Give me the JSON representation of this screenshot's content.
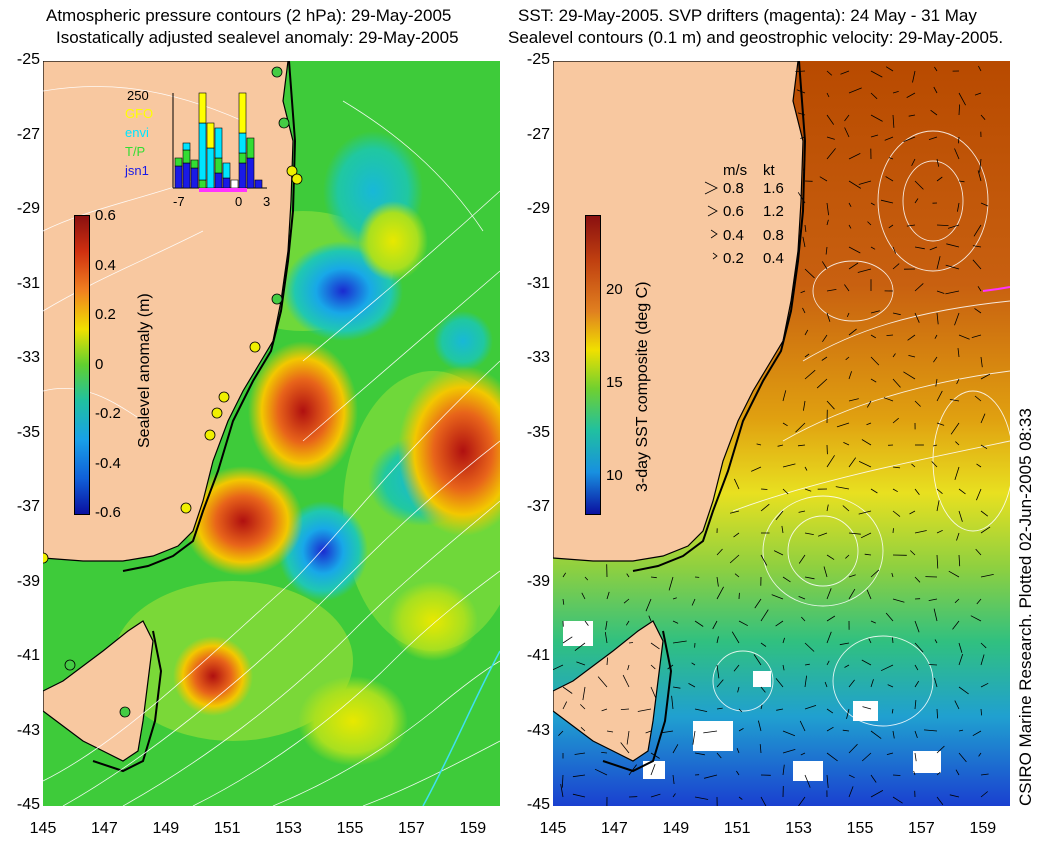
{
  "titles": {
    "left_line1": "Atmospheric pressure contours (2 hPa): 29-May-2005",
    "left_line2": "Isostatically adjusted sealevel anomaly: 29-May-2005",
    "right_line1": "SST: 29-May-2005. SVP drifters (magenta): 24 May - 31 May",
    "right_line2": "Sealevel contours (0.1 m) and geostrophic velocity: 29-May-2005."
  },
  "axes": {
    "lat_labels": [
      "-25",
      "-27",
      "-29",
      "-31",
      "-33",
      "-35",
      "-37",
      "-39",
      "-41",
      "-43",
      "-45"
    ],
    "lon_labels": [
      "145",
      "147",
      "149",
      "151",
      "153",
      "155",
      "157",
      "159"
    ]
  },
  "left_colorbar": {
    "label": "Sealevel anomaly (m)",
    "ticks": [
      "0.6",
      "0.4",
      "0.2",
      "0",
      "-0.2",
      "-0.4",
      "-0.6"
    ]
  },
  "right_colorbar": {
    "label": "3-day SST composite (deg C)",
    "ticks": [
      "20",
      "15",
      "10"
    ]
  },
  "inset": {
    "ymax": "250",
    "legend": [
      {
        "label": "GFO",
        "color": "#ffff00"
      },
      {
        "label": "envi",
        "color": "#00e5ff"
      },
      {
        "label": "T/P",
        "color": "#33dd33"
      },
      {
        "label": "jsn1",
        "color": "#1a1ae6"
      }
    ],
    "x_labels": [
      "-7",
      "0",
      "3"
    ]
  },
  "velocity_legend": {
    "header_ms": "m/s",
    "header_kt": "kt",
    "rows": [
      {
        "ms": "0.8",
        "kt": "1.6"
      },
      {
        "ms": "0.6",
        "kt": "1.2"
      },
      {
        "ms": "0.4",
        "kt": "0.8"
      },
      {
        "ms": "0.2",
        "kt": "0.4"
      }
    ]
  },
  "credit": "CSIRO Marine Research. Plotted 02-Jun-2005 08:33",
  "colors": {
    "land": "#f8c8a0",
    "sea_green": "#33c633",
    "anom_high": "#b01010",
    "anom_low": "#1a2ad0",
    "sst_warm": "#c04a00",
    "sst_cold": "#1a40d0"
  }
}
